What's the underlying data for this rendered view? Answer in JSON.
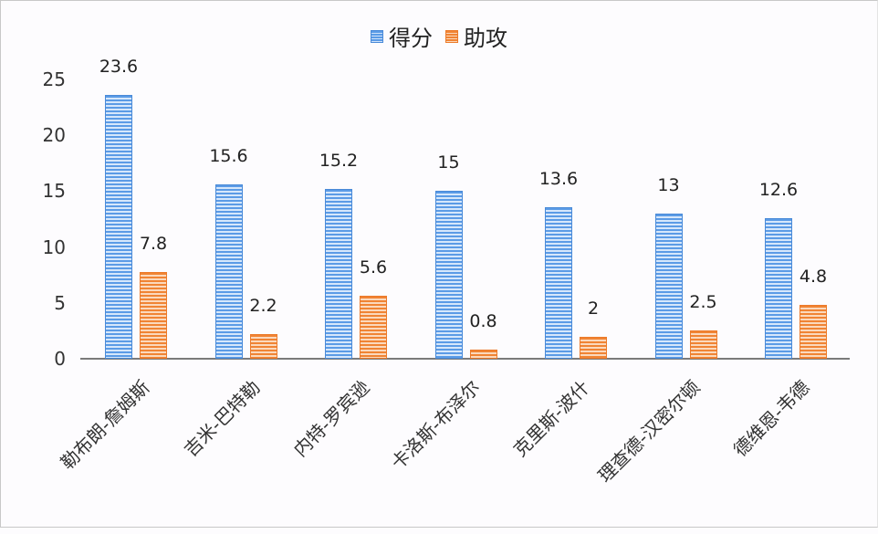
{
  "chart_data": {
    "type": "bar",
    "title": "",
    "xlabel": "",
    "ylabel": "",
    "ylim": [
      0,
      25
    ],
    "yticks": [
      0,
      5,
      10,
      15,
      20,
      25
    ],
    "grid": false,
    "legend_position": "top",
    "categories": [
      "勒布朗-詹姆斯",
      "吉米-巴特勒",
      "内特-罗宾逊",
      "卡洛斯-布泽尔",
      "克里斯-波什",
      "理查德-汉密尔顿",
      "德维恩-韦德"
    ],
    "series": [
      {
        "name": "得分",
        "color": "#5b9be6",
        "values": [
          23.6,
          15.6,
          15.2,
          15,
          13.6,
          13,
          12.6
        ],
        "labels": [
          "23.6",
          "15.6",
          "15.2",
          "15",
          "13.6",
          "13",
          "12.6"
        ]
      },
      {
        "name": "助攻",
        "color": "#f08434",
        "values": [
          7.8,
          2.2,
          5.6,
          0.8,
          2,
          2.5,
          4.8
        ],
        "labels": [
          "7.8",
          "2.2",
          "5.6",
          "0.8",
          "2",
          "2.5",
          "4.8"
        ]
      }
    ]
  },
  "legend": {
    "items": [
      {
        "label": "得分",
        "color": "#5b9be6"
      },
      {
        "label": "助攻",
        "color": "#f08434"
      }
    ]
  }
}
